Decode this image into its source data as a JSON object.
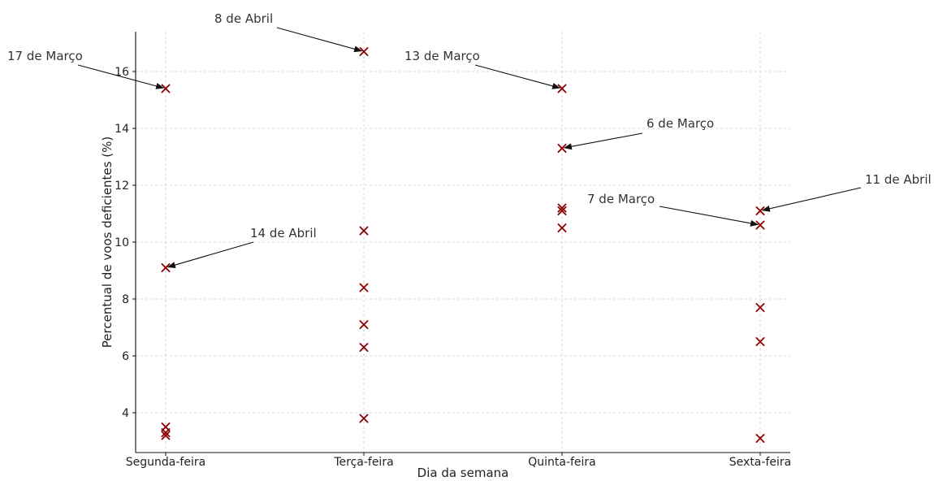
{
  "chart_data": {
    "type": "scatter",
    "title": "",
    "xlabel": "Dia da semana",
    "ylabel": "Percentual de voos deficientes (%)",
    "categories": [
      "Segunda-feira",
      "Terça-feira",
      "Quinta-feira",
      "Sexta-feira"
    ],
    "ylim": [
      2.6,
      17.4
    ],
    "y_ticks": [
      4,
      6,
      8,
      10,
      12,
      14,
      16
    ],
    "grid": true,
    "series": [
      {
        "color": "#8b0000",
        "marker": "x",
        "points": [
          {
            "x": "Segunda-feira",
            "y": 15.4
          },
          {
            "x": "Segunda-feira",
            "y": 9.1
          },
          {
            "x": "Segunda-feira",
            "y": 3.5
          },
          {
            "x": "Segunda-feira",
            "y": 3.3
          },
          {
            "x": "Segunda-feira",
            "y": 3.2
          },
          {
            "x": "Terça-feira",
            "y": 16.7
          },
          {
            "x": "Terça-feira",
            "y": 10.4
          },
          {
            "x": "Terça-feira",
            "y": 8.4
          },
          {
            "x": "Terça-feira",
            "y": 7.1
          },
          {
            "x": "Terça-feira",
            "y": 6.3
          },
          {
            "x": "Terça-feira",
            "y": 3.8
          },
          {
            "x": "Quinta-feira",
            "y": 15.4
          },
          {
            "x": "Quinta-feira",
            "y": 13.3
          },
          {
            "x": "Quinta-feira",
            "y": 11.2
          },
          {
            "x": "Quinta-feira",
            "y": 11.1
          },
          {
            "x": "Quinta-feira",
            "y": 10.5
          },
          {
            "x": "Sexta-feira",
            "y": 11.1
          },
          {
            "x": "Sexta-feira",
            "y": 10.6
          },
          {
            "x": "Sexta-feira",
            "y": 7.7
          },
          {
            "x": "Sexta-feira",
            "y": 6.5
          },
          {
            "x": "Sexta-feira",
            "y": 3.1
          }
        ]
      }
    ],
    "annotations": [
      {
        "text": "17 de Março",
        "x": "Segunda-feira",
        "y": 15.4
      },
      {
        "text": "14 de Abril",
        "x": "Segunda-feira",
        "y": 9.1
      },
      {
        "text": "8 de Abril",
        "x": "Terça-feira",
        "y": 16.7
      },
      {
        "text": "13 de Março",
        "x": "Quinta-feira",
        "y": 15.4
      },
      {
        "text": "6 de Março",
        "x": "Quinta-feira",
        "y": 13.3
      },
      {
        "text": "7 de Março",
        "x": "Sexta-feira",
        "y": 10.6
      },
      {
        "text": "11 de Abril",
        "x": "Sexta-feira",
        "y": 11.1
      }
    ]
  }
}
